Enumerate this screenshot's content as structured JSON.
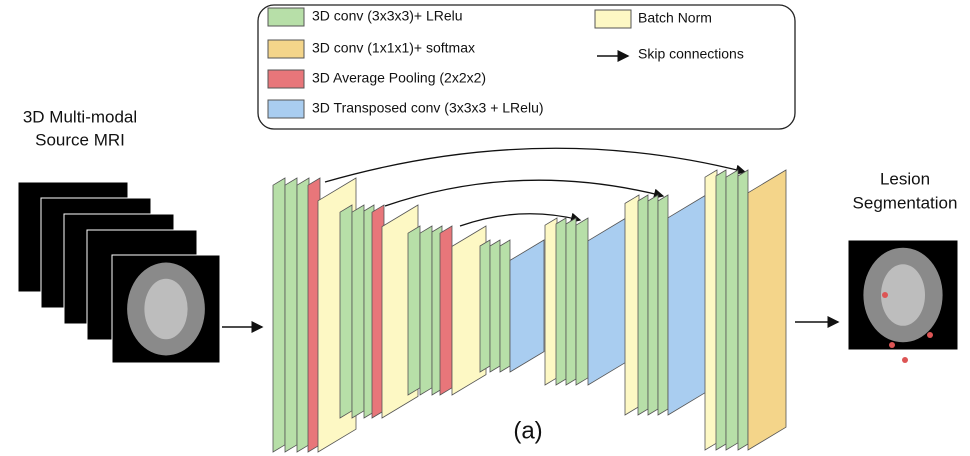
{
  "legend": {
    "items": [
      {
        "label": "3D conv (3x3x3)+ LRelu"
      },
      {
        "label": "3D conv (1x1x1)+ softmax"
      },
      {
        "label": "3D Average Pooling (2x2x2)"
      },
      {
        "label": "3D Transposed conv (3x3x3 + LRelu)"
      },
      {
        "label": "Batch Norm"
      },
      {
        "label": "Skip connections"
      }
    ]
  },
  "input": {
    "lines": [
      "3D Multi-modal",
      "Source MRI"
    ]
  },
  "output": {
    "lines": [
      "Lesion",
      "Segmentation"
    ]
  },
  "caption": "(a)"
}
